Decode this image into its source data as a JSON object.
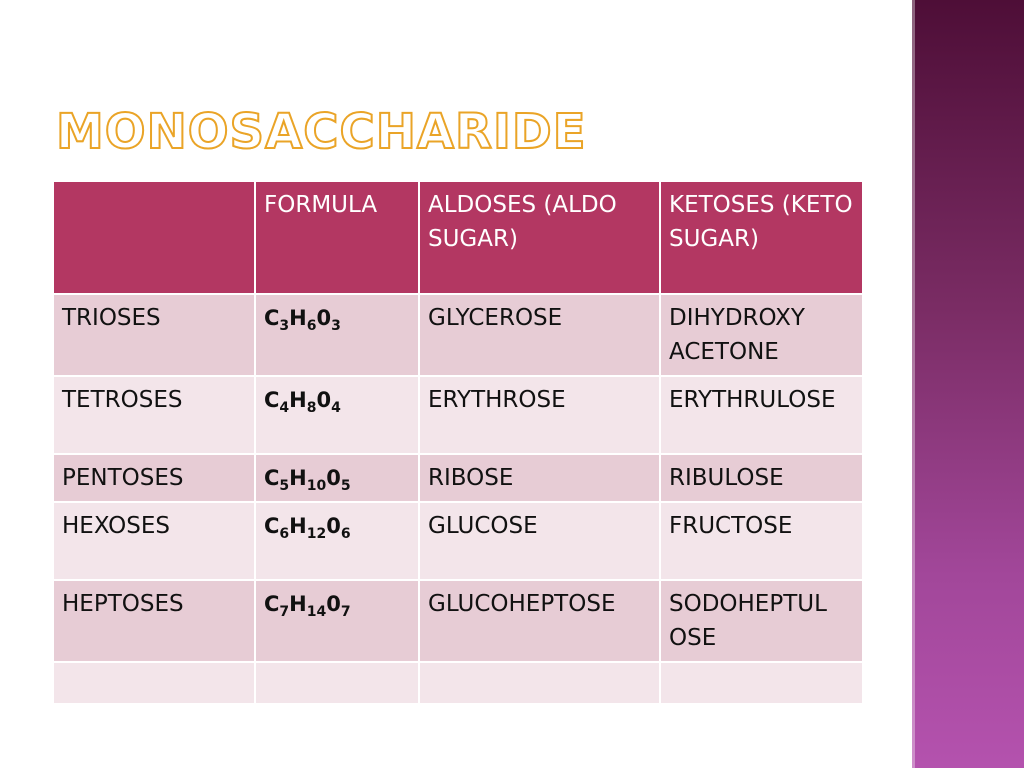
{
  "title": "MONOSACCHARIDE",
  "colors": {
    "header_bg": "#b33762",
    "row_dark": "#e7ccd5",
    "row_light": "#f3e5ea",
    "title_outline": "#eaa427",
    "side_band_top": "#4e0e37",
    "side_band_bottom": "#b452ae"
  },
  "table": {
    "headers": [
      "",
      "FORMULA",
      "ALDOSES (ALDO  SUGAR)",
      "KETOSES (KETO SUGAR)"
    ],
    "rows": [
      {
        "name": "TRIOSES",
        "formula": {
          "c": "C",
          "c_n": "3",
          "h": "H",
          "h_n": "6",
          "o": "0",
          "o_n": "3"
        },
        "aldose": "GLYCEROSE",
        "ketose": "DIHYDROXY ACETONE"
      },
      {
        "name": "TETROSES",
        "formula": {
          "c": "C",
          "c_n": "4",
          "h": "H",
          "h_n": "8",
          "o": "0",
          "o_n": "4"
        },
        "aldose": "ERYTHROSE",
        "ketose": "ERYTHRULOSE"
      },
      {
        "name": "PENTOSES",
        "formula": {
          "c": "C",
          "c_n": "5",
          "h": "H",
          "h_n": "10",
          "o": "0",
          "o_n": "5"
        },
        "aldose": "RIBOSE",
        "ketose": "RIBULOSE"
      },
      {
        "name": "HEXOSES",
        "formula": {
          "c": "C",
          "c_n": "6",
          "h": "H",
          "h_n": "12",
          "o": "0",
          "o_n": "6"
        },
        "aldose": "GLUCOSE",
        "ketose": "FRUCTOSE"
      },
      {
        "name": "HEPTOSES",
        "formula": {
          "c": "C",
          "c_n": "7",
          "h": "H",
          "h_n": "14",
          "o": "0",
          "o_n": "7"
        },
        "aldose": "GLUCOHEPTOSE",
        "ketose": "SODOHEPTUL OSE"
      },
      {
        "name": "",
        "formula": {
          "c": "",
          "c_n": "",
          "h": "",
          "h_n": "",
          "o": "",
          "o_n": ""
        },
        "aldose": "",
        "ketose": ""
      }
    ]
  }
}
